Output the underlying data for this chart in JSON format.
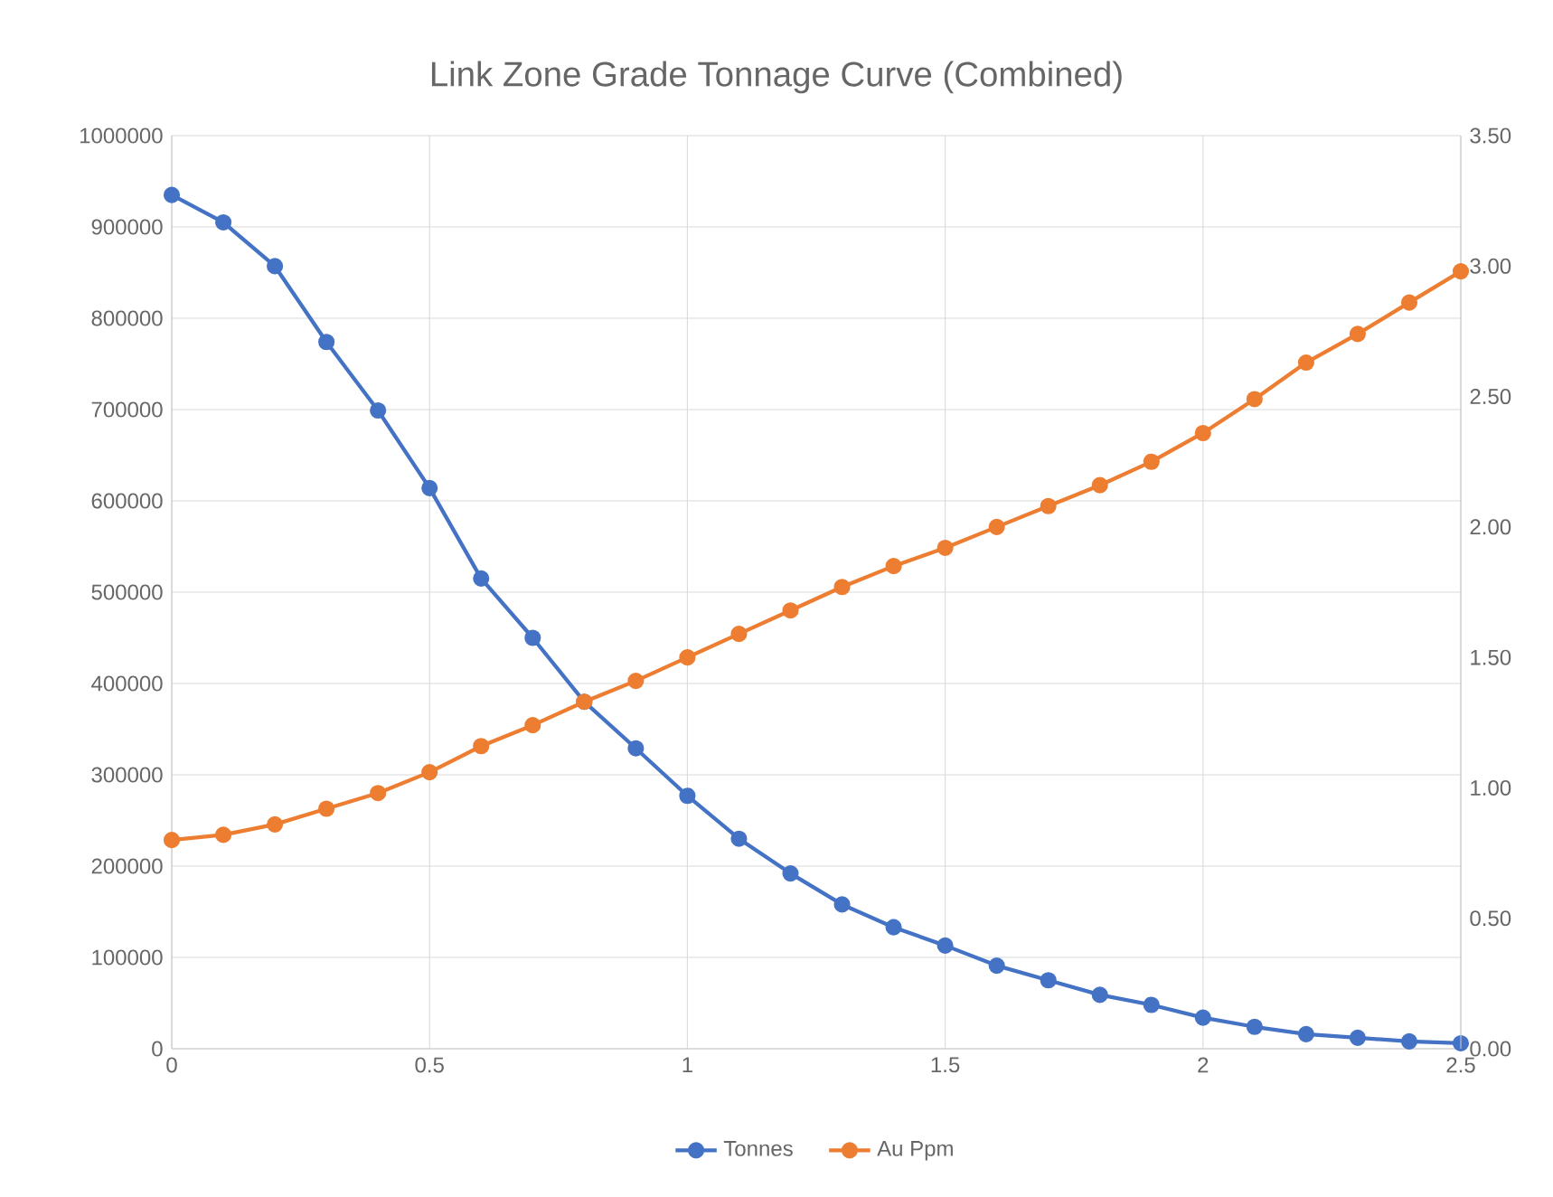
{
  "chart_data": {
    "type": "line",
    "title": "Link Zone Grade Tonnage Curve (Combined)",
    "x": [
      0,
      0.1,
      0.2,
      0.3,
      0.4,
      0.5,
      0.6,
      0.7,
      0.8,
      0.9,
      1.0,
      1.1,
      1.2,
      1.3,
      1.4,
      1.5,
      1.6,
      1.7,
      1.8,
      1.9,
      2.0,
      2.1,
      2.2,
      2.3,
      2.4,
      2.5
    ],
    "series": [
      {
        "name": "Tonnes",
        "color": "#4472c4",
        "values": [
          935000,
          905000,
          857000,
          774000,
          699000,
          614000,
          515000,
          450000,
          380000,
          329000,
          277000,
          230000,
          192000,
          158000,
          133000,
          113000,
          91000,
          75000,
          59000,
          48000,
          34000,
          24000,
          16000,
          12000,
          8000,
          6000
        ]
      },
      {
        "name": "Au Ppm",
        "color": "#ed7d31",
        "axis": "y2",
        "values": [
          0.8,
          0.82,
          0.86,
          0.92,
          0.98,
          1.06,
          1.16,
          1.24,
          1.33,
          1.41,
          1.5,
          1.59,
          1.68,
          1.77,
          1.85,
          1.92,
          2.0,
          2.08,
          2.16,
          2.25,
          2.36,
          2.49,
          2.63,
          2.74,
          2.86,
          2.98
        ]
      }
    ],
    "xlim": [
      0,
      2.5
    ],
    "xticks": [
      0,
      0.5,
      1,
      1.5,
      2,
      2.5
    ],
    "ylim": [
      0,
      1000000
    ],
    "yticks": [
      0,
      100000,
      200000,
      300000,
      400000,
      500000,
      600000,
      700000,
      800000,
      900000,
      1000000
    ],
    "y2lim": [
      0,
      3.5
    ],
    "y2ticks": [
      {
        "value": 0,
        "label": "0.00"
      },
      {
        "value": 0.5,
        "label": "0.50"
      },
      {
        "value": 1,
        "label": "1.00"
      },
      {
        "value": 1.5,
        "label": "1.50"
      },
      {
        "value": 2,
        "label": "2.00"
      },
      {
        "value": 2.5,
        "label": "2.50"
      },
      {
        "value": 3,
        "label": "3.00"
      },
      {
        "value": 3.5,
        "label": "3.50"
      }
    ],
    "grid": true,
    "legend": "bottom",
    "marker": "circle",
    "line_style": "solid"
  }
}
